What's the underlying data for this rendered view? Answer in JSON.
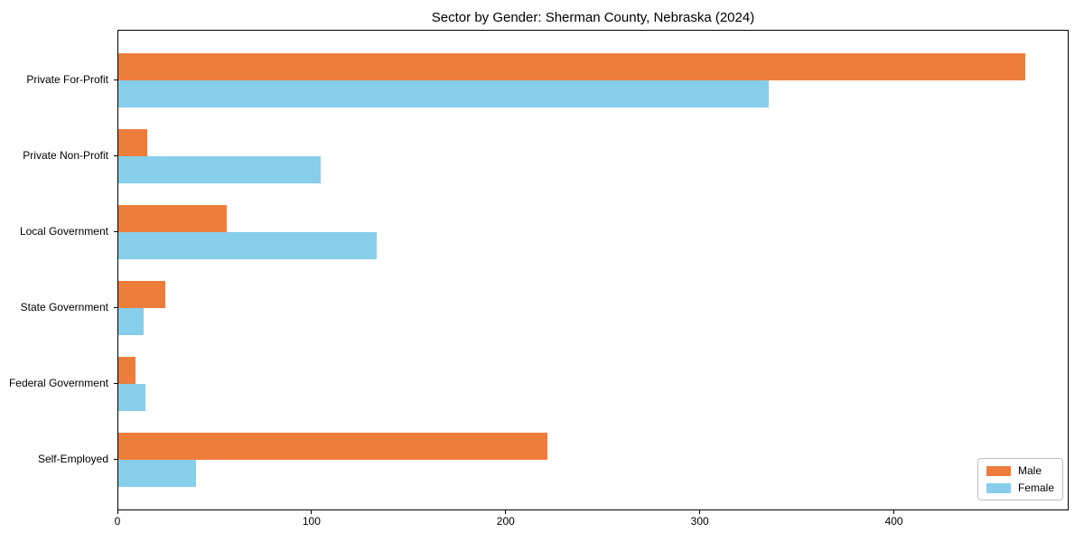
{
  "chart_data": {
    "type": "bar",
    "orientation": "horizontal",
    "title": "Sector by Gender: Sherman County, Nebraska (2024)",
    "xlabel": "",
    "ylabel": "",
    "categories": [
      "Private For-Profit",
      "Private Non-Profit",
      "Local Government",
      "State Government",
      "Federal Government",
      "Self-Employed"
    ],
    "series": [
      {
        "name": "Male",
        "color": "#ED7D3B",
        "values": [
          467,
          15,
          56,
          24,
          9,
          221
        ]
      },
      {
        "name": "Female",
        "color": "#87CEEB",
        "values": [
          335,
          104,
          133,
          13,
          14,
          40
        ]
      }
    ],
    "xlim": [
      0,
      490
    ],
    "xticks": [
      0,
      100,
      200,
      300,
      400
    ],
    "grid": false,
    "legend_position": "lower right",
    "legend_labels": [
      "Male",
      "Female"
    ]
  }
}
